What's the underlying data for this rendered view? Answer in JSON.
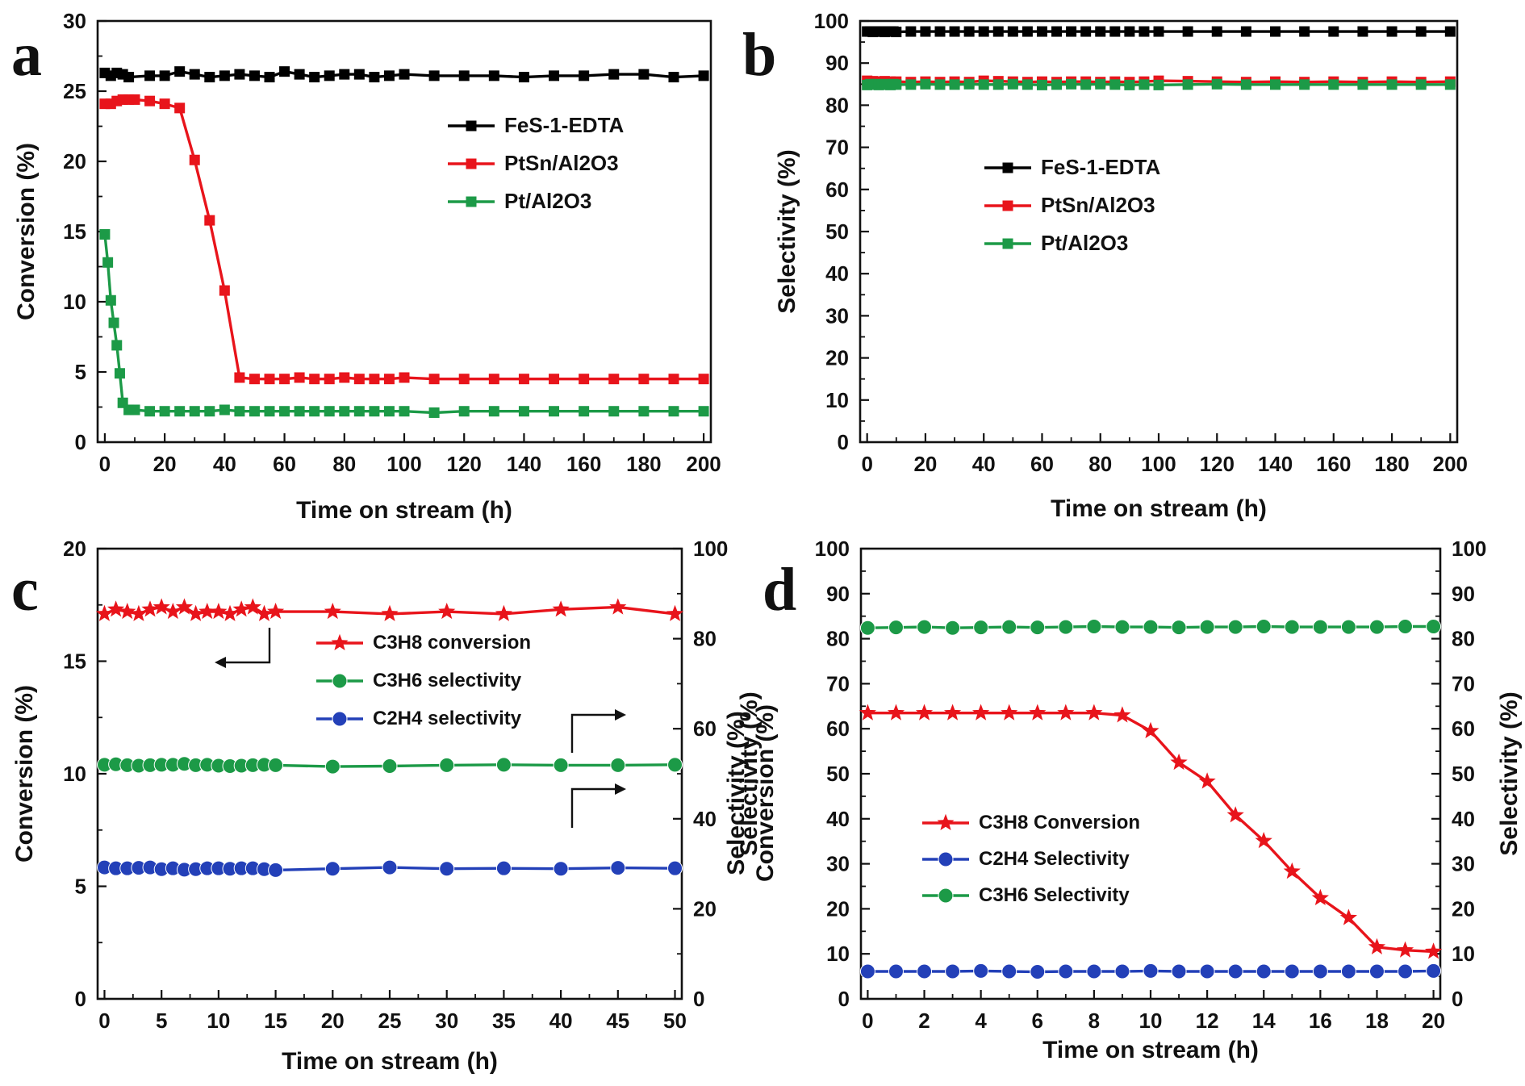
{
  "panels": {
    "a": {
      "letter": "a"
    },
    "b": {
      "letter": "b"
    },
    "c": {
      "letter": "c"
    },
    "d": {
      "letter": "d"
    }
  },
  "chart_data": [
    {
      "id": "a",
      "type": "line",
      "xlabel": "Time on stream (h)",
      "ylabel": "Conversion (%)",
      "xlim": [
        0,
        200
      ],
      "ylim": [
        0,
        30
      ],
      "xticks": [
        "0",
        "20",
        "40",
        "60",
        "80",
        "100",
        "120",
        "140",
        "160",
        "180",
        "200"
      ],
      "yticks": [
        "0",
        "5",
        "10",
        "15",
        "20",
        "25",
        "30"
      ],
      "legend_position": "right-upper",
      "series": [
        {
          "name": "FeS-1-EDTA",
          "color": "#000000",
          "marker": "square",
          "x": [
            0,
            2,
            4,
            6,
            8,
            15,
            20,
            25,
            30,
            35,
            40,
            45,
            50,
            55,
            60,
            65,
            70,
            75,
            80,
            85,
            90,
            95,
            100,
            110,
            120,
            130,
            140,
            150,
            160,
            170,
            180,
            190,
            200
          ],
          "y": [
            26.3,
            26.1,
            26.3,
            26.2,
            26.0,
            26.1,
            26.1,
            26.4,
            26.2,
            26.0,
            26.1,
            26.2,
            26.1,
            26.0,
            26.4,
            26.2,
            26.0,
            26.1,
            26.2,
            26.2,
            26.0,
            26.1,
            26.2,
            26.1,
            26.1,
            26.1,
            26.0,
            26.1,
            26.1,
            26.2,
            26.2,
            26.0,
            26.1
          ]
        },
        {
          "name": "PtSn/Al2O3",
          "color": "#e8141b",
          "marker": "square",
          "x": [
            0,
            2,
            4,
            6,
            8,
            10,
            15,
            20,
            25,
            30,
            35,
            40,
            45,
            50,
            55,
            60,
            65,
            70,
            75,
            80,
            85,
            90,
            95,
            100,
            110,
            120,
            130,
            140,
            150,
            160,
            170,
            180,
            190,
            200
          ],
          "y": [
            24.1,
            24.1,
            24.3,
            24.4,
            24.4,
            24.4,
            24.3,
            24.1,
            23.8,
            20.1,
            15.8,
            10.8,
            4.6,
            4.5,
            4.5,
            4.5,
            4.6,
            4.5,
            4.5,
            4.6,
            4.5,
            4.5,
            4.5,
            4.6,
            4.5,
            4.5,
            4.5,
            4.5,
            4.5,
            4.5,
            4.5,
            4.5,
            4.5,
            4.5
          ]
        },
        {
          "name": "Pt/Al2O3",
          "color": "#1c9a47",
          "marker": "square",
          "x": [
            0,
            1,
            2,
            3,
            4,
            5,
            6,
            8,
            10,
            15,
            20,
            25,
            30,
            35,
            40,
            45,
            50,
            55,
            60,
            65,
            70,
            75,
            80,
            85,
            90,
            95,
            100,
            110,
            120,
            130,
            140,
            150,
            160,
            170,
            180,
            190,
            200
          ],
          "y": [
            14.8,
            12.8,
            10.1,
            8.5,
            6.9,
            4.9,
            2.8,
            2.3,
            2.3,
            2.2,
            2.2,
            2.2,
            2.2,
            2.2,
            2.3,
            2.2,
            2.2,
            2.2,
            2.2,
            2.2,
            2.2,
            2.2,
            2.2,
            2.2,
            2.2,
            2.2,
            2.2,
            2.1,
            2.2,
            2.2,
            2.2,
            2.2,
            2.2,
            2.2,
            2.2,
            2.2,
            2.2
          ]
        }
      ]
    },
    {
      "id": "b",
      "type": "line",
      "xlabel": "Time on stream (h)",
      "ylabel": "Selectivity (%)",
      "xlim": [
        0,
        200
      ],
      "ylim": [
        0,
        100
      ],
      "xticks": [
        "0",
        "20",
        "40",
        "60",
        "80",
        "100",
        "120",
        "140",
        "160",
        "180",
        "200"
      ],
      "yticks": [
        "0",
        "10",
        "20",
        "30",
        "40",
        "50",
        "60",
        "70",
        "80",
        "90",
        "100"
      ],
      "legend_position": "right-middle",
      "series": [
        {
          "name": "FeS-1-EDTA",
          "color": "#000000",
          "marker": "square",
          "x": [
            0,
            1,
            2,
            3,
            4,
            5,
            6,
            7,
            8,
            9,
            10,
            15,
            20,
            25,
            30,
            35,
            40,
            45,
            50,
            55,
            60,
            65,
            70,
            75,
            80,
            85,
            90,
            95,
            100,
            110,
            120,
            130,
            140,
            150,
            160,
            170,
            180,
            190,
            200
          ],
          "y": [
            97.5,
            97.5,
            97.4,
            97.5,
            97.5,
            97.5,
            97.4,
            97.5,
            97.5,
            97.5,
            97.4,
            97.5,
            97.5,
            97.5,
            97.5,
            97.5,
            97.5,
            97.5,
            97.5,
            97.5,
            97.5,
            97.5,
            97.5,
            97.5,
            97.5,
            97.5,
            97.5,
            97.5,
            97.5,
            97.5,
            97.5,
            97.5,
            97.5,
            97.5,
            97.5,
            97.5,
            97.5,
            97.5,
            97.5
          ]
        },
        {
          "name": "PtSn/Al2O3",
          "color": "#e8141b",
          "marker": "square",
          "x": [
            0,
            2,
            4,
            6,
            8,
            10,
            15,
            20,
            25,
            30,
            35,
            40,
            45,
            50,
            55,
            60,
            65,
            70,
            75,
            80,
            85,
            90,
            95,
            100,
            110,
            120,
            130,
            140,
            150,
            160,
            170,
            180,
            190,
            200
          ],
          "y": [
            85.8,
            85.7,
            85.6,
            85.7,
            85.6,
            85.6,
            85.5,
            85.6,
            85.5,
            85.6,
            85.5,
            85.8,
            85.7,
            85.6,
            85.5,
            85.6,
            85.5,
            85.6,
            85.6,
            85.5,
            85.6,
            85.5,
            85.6,
            85.8,
            85.7,
            85.6,
            85.5,
            85.6,
            85.5,
            85.6,
            85.5,
            85.6,
            85.5,
            85.6
          ]
        },
        {
          "name": "Pt/Al2O3",
          "color": "#1c9a47",
          "marker": "square",
          "x": [
            0,
            1,
            2,
            3,
            4,
            5,
            6,
            7,
            8,
            9,
            10,
            15,
            20,
            25,
            30,
            35,
            40,
            45,
            50,
            55,
            60,
            65,
            70,
            75,
            80,
            85,
            90,
            95,
            100,
            110,
            120,
            130,
            140,
            150,
            160,
            170,
            180,
            190,
            200
          ],
          "y": [
            84.8,
            85.0,
            84.9,
            85.0,
            84.8,
            84.9,
            85.0,
            84.9,
            84.8,
            85.0,
            84.9,
            84.9,
            85.0,
            84.9,
            84.9,
            85.0,
            84.9,
            84.9,
            85.0,
            84.9,
            84.8,
            84.9,
            85.0,
            84.9,
            85.0,
            84.9,
            84.8,
            84.9,
            84.8,
            84.9,
            85.0,
            84.9,
            84.9,
            84.9,
            84.9,
            84.9,
            84.9,
            84.9,
            84.9
          ]
        }
      ]
    },
    {
      "id": "c",
      "type": "line",
      "xlabel": "Time on stream (h)",
      "ylabel": "Conversion (%)",
      "y2label": "Selectivity (%)",
      "xlim": [
        0,
        50
      ],
      "ylim": [
        0,
        20
      ],
      "y2lim": [
        0,
        100
      ],
      "xticks": [
        "0",
        "5",
        "10",
        "15",
        "20",
        "25",
        "30",
        "35",
        "40",
        "45",
        "50"
      ],
      "yticks": [
        "0",
        "5",
        "10",
        "15",
        "20"
      ],
      "y2ticks": [
        "0",
        "20",
        "40",
        "60",
        "80",
        "100"
      ],
      "legend_position": "center-upper",
      "series": [
        {
          "name": "C3H8 conversion",
          "color": "#e8141b",
          "marker": "star",
          "axis": "left",
          "x": [
            0,
            1,
            2,
            3,
            4,
            5,
            6,
            7,
            8,
            9,
            10,
            11,
            12,
            13,
            14,
            15,
            20,
            25,
            30,
            35,
            40,
            45,
            50
          ],
          "y": [
            17.1,
            17.3,
            17.2,
            17.1,
            17.3,
            17.4,
            17.2,
            17.4,
            17.1,
            17.2,
            17.2,
            17.1,
            17.3,
            17.4,
            17.1,
            17.2,
            17.2,
            17.1,
            17.2,
            17.1,
            17.3,
            17.4,
            17.1
          ]
        },
        {
          "name": "C3H6 selectivity",
          "color": "#1c9a47",
          "marker": "circle",
          "axis": "right",
          "x": [
            0,
            1,
            2,
            3,
            4,
            5,
            6,
            7,
            8,
            9,
            10,
            11,
            12,
            13,
            14,
            15,
            20,
            25,
            30,
            35,
            40,
            45,
            50
          ],
          "y": [
            52.0,
            52.1,
            51.9,
            51.8,
            51.9,
            52.0,
            52.0,
            52.2,
            51.9,
            52.0,
            51.8,
            51.7,
            51.8,
            51.9,
            52.0,
            51.9,
            51.6,
            51.7,
            51.9,
            52.0,
            51.9,
            51.9,
            52.0
          ]
        },
        {
          "name": "C2H4 selectivity",
          "color": "#2340b8",
          "marker": "circle",
          "axis": "right",
          "x": [
            0,
            1,
            2,
            3,
            4,
            5,
            6,
            7,
            8,
            9,
            10,
            11,
            12,
            13,
            14,
            15,
            20,
            25,
            30,
            35,
            40,
            45,
            50
          ],
          "y": [
            29.2,
            29.0,
            29.0,
            29.1,
            29.2,
            28.8,
            29.0,
            28.7,
            28.8,
            29.0,
            29.0,
            28.9,
            29.0,
            29.0,
            28.8,
            28.6,
            28.9,
            29.2,
            28.9,
            29.0,
            28.9,
            29.1,
            29.0
          ]
        }
      ]
    },
    {
      "id": "d",
      "type": "line",
      "xlabel": "Time on stream (h)",
      "ylabel": "Selectivity (%)",
      "ylabel2": "Conversion (%)",
      "y2label": "Selectivity (%)",
      "xlim": [
        0,
        20
      ],
      "ylim": [
        0,
        100
      ],
      "y2lim": [
        0,
        100
      ],
      "xticks": [
        "0",
        "2",
        "4",
        "6",
        "8",
        "10",
        "12",
        "14",
        "16",
        "18",
        "20"
      ],
      "yticks": [
        "0",
        "10",
        "20",
        "30",
        "40",
        "50",
        "60",
        "70",
        "80",
        "90",
        "100"
      ],
      "y2ticks": [
        "0",
        "10",
        "20",
        "30",
        "40",
        "50",
        "60",
        "70",
        "80",
        "90",
        "100"
      ],
      "legend_position": "left-lower",
      "series": [
        {
          "name": "C3H8 Conversion",
          "color": "#e8141b",
          "marker": "star",
          "axis": "left",
          "x": [
            0,
            1,
            2,
            3,
            4,
            5,
            6,
            7,
            8,
            9,
            10,
            11,
            12,
            13,
            14,
            15,
            16,
            17,
            18,
            19,
            20
          ],
          "y": [
            63.5,
            63.5,
            63.5,
            63.5,
            63.5,
            63.5,
            63.5,
            63.5,
            63.5,
            63.0,
            59.5,
            52.5,
            48.3,
            40.8,
            35.1,
            28.3,
            22.4,
            18.0,
            11.5,
            10.8,
            10.5
          ]
        },
        {
          "name": "C2H4 Selectivity",
          "color": "#2340b8",
          "marker": "circle",
          "axis": "right",
          "x": [
            0,
            1,
            2,
            3,
            4,
            5,
            6,
            7,
            8,
            9,
            10,
            11,
            12,
            13,
            14,
            15,
            16,
            17,
            18,
            19,
            20
          ],
          "y": [
            6.1,
            6.1,
            6.1,
            6.1,
            6.2,
            6.1,
            6.0,
            6.1,
            6.1,
            6.1,
            6.2,
            6.1,
            6.1,
            6.1,
            6.1,
            6.1,
            6.1,
            6.1,
            6.1,
            6.1,
            6.2
          ]
        },
        {
          "name": "C3H6  Selectivity",
          "color": "#1c9a47",
          "marker": "circle",
          "axis": "right",
          "x": [
            0,
            1,
            2,
            3,
            4,
            5,
            6,
            7,
            8,
            9,
            10,
            11,
            12,
            13,
            14,
            15,
            16,
            17,
            18,
            19,
            20
          ],
          "y": [
            82.4,
            82.5,
            82.6,
            82.4,
            82.5,
            82.6,
            82.5,
            82.6,
            82.7,
            82.6,
            82.6,
            82.5,
            82.6,
            82.6,
            82.7,
            82.6,
            82.6,
            82.6,
            82.6,
            82.7,
            82.7
          ]
        }
      ]
    }
  ]
}
